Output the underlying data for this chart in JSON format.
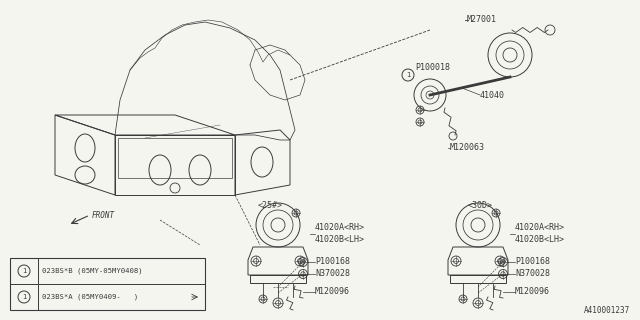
{
  "bg_color": "#f5f5f0",
  "line_color": "#3a3a3a",
  "diagram_id": "A410001237",
  "legend_row1": "023BS*B (05MY-05MY0408)",
  "legend_row2": "023BS*A (05MY0409-   )",
  "figsize": [
    6.4,
    3.2
  ],
  "dpi": 100
}
